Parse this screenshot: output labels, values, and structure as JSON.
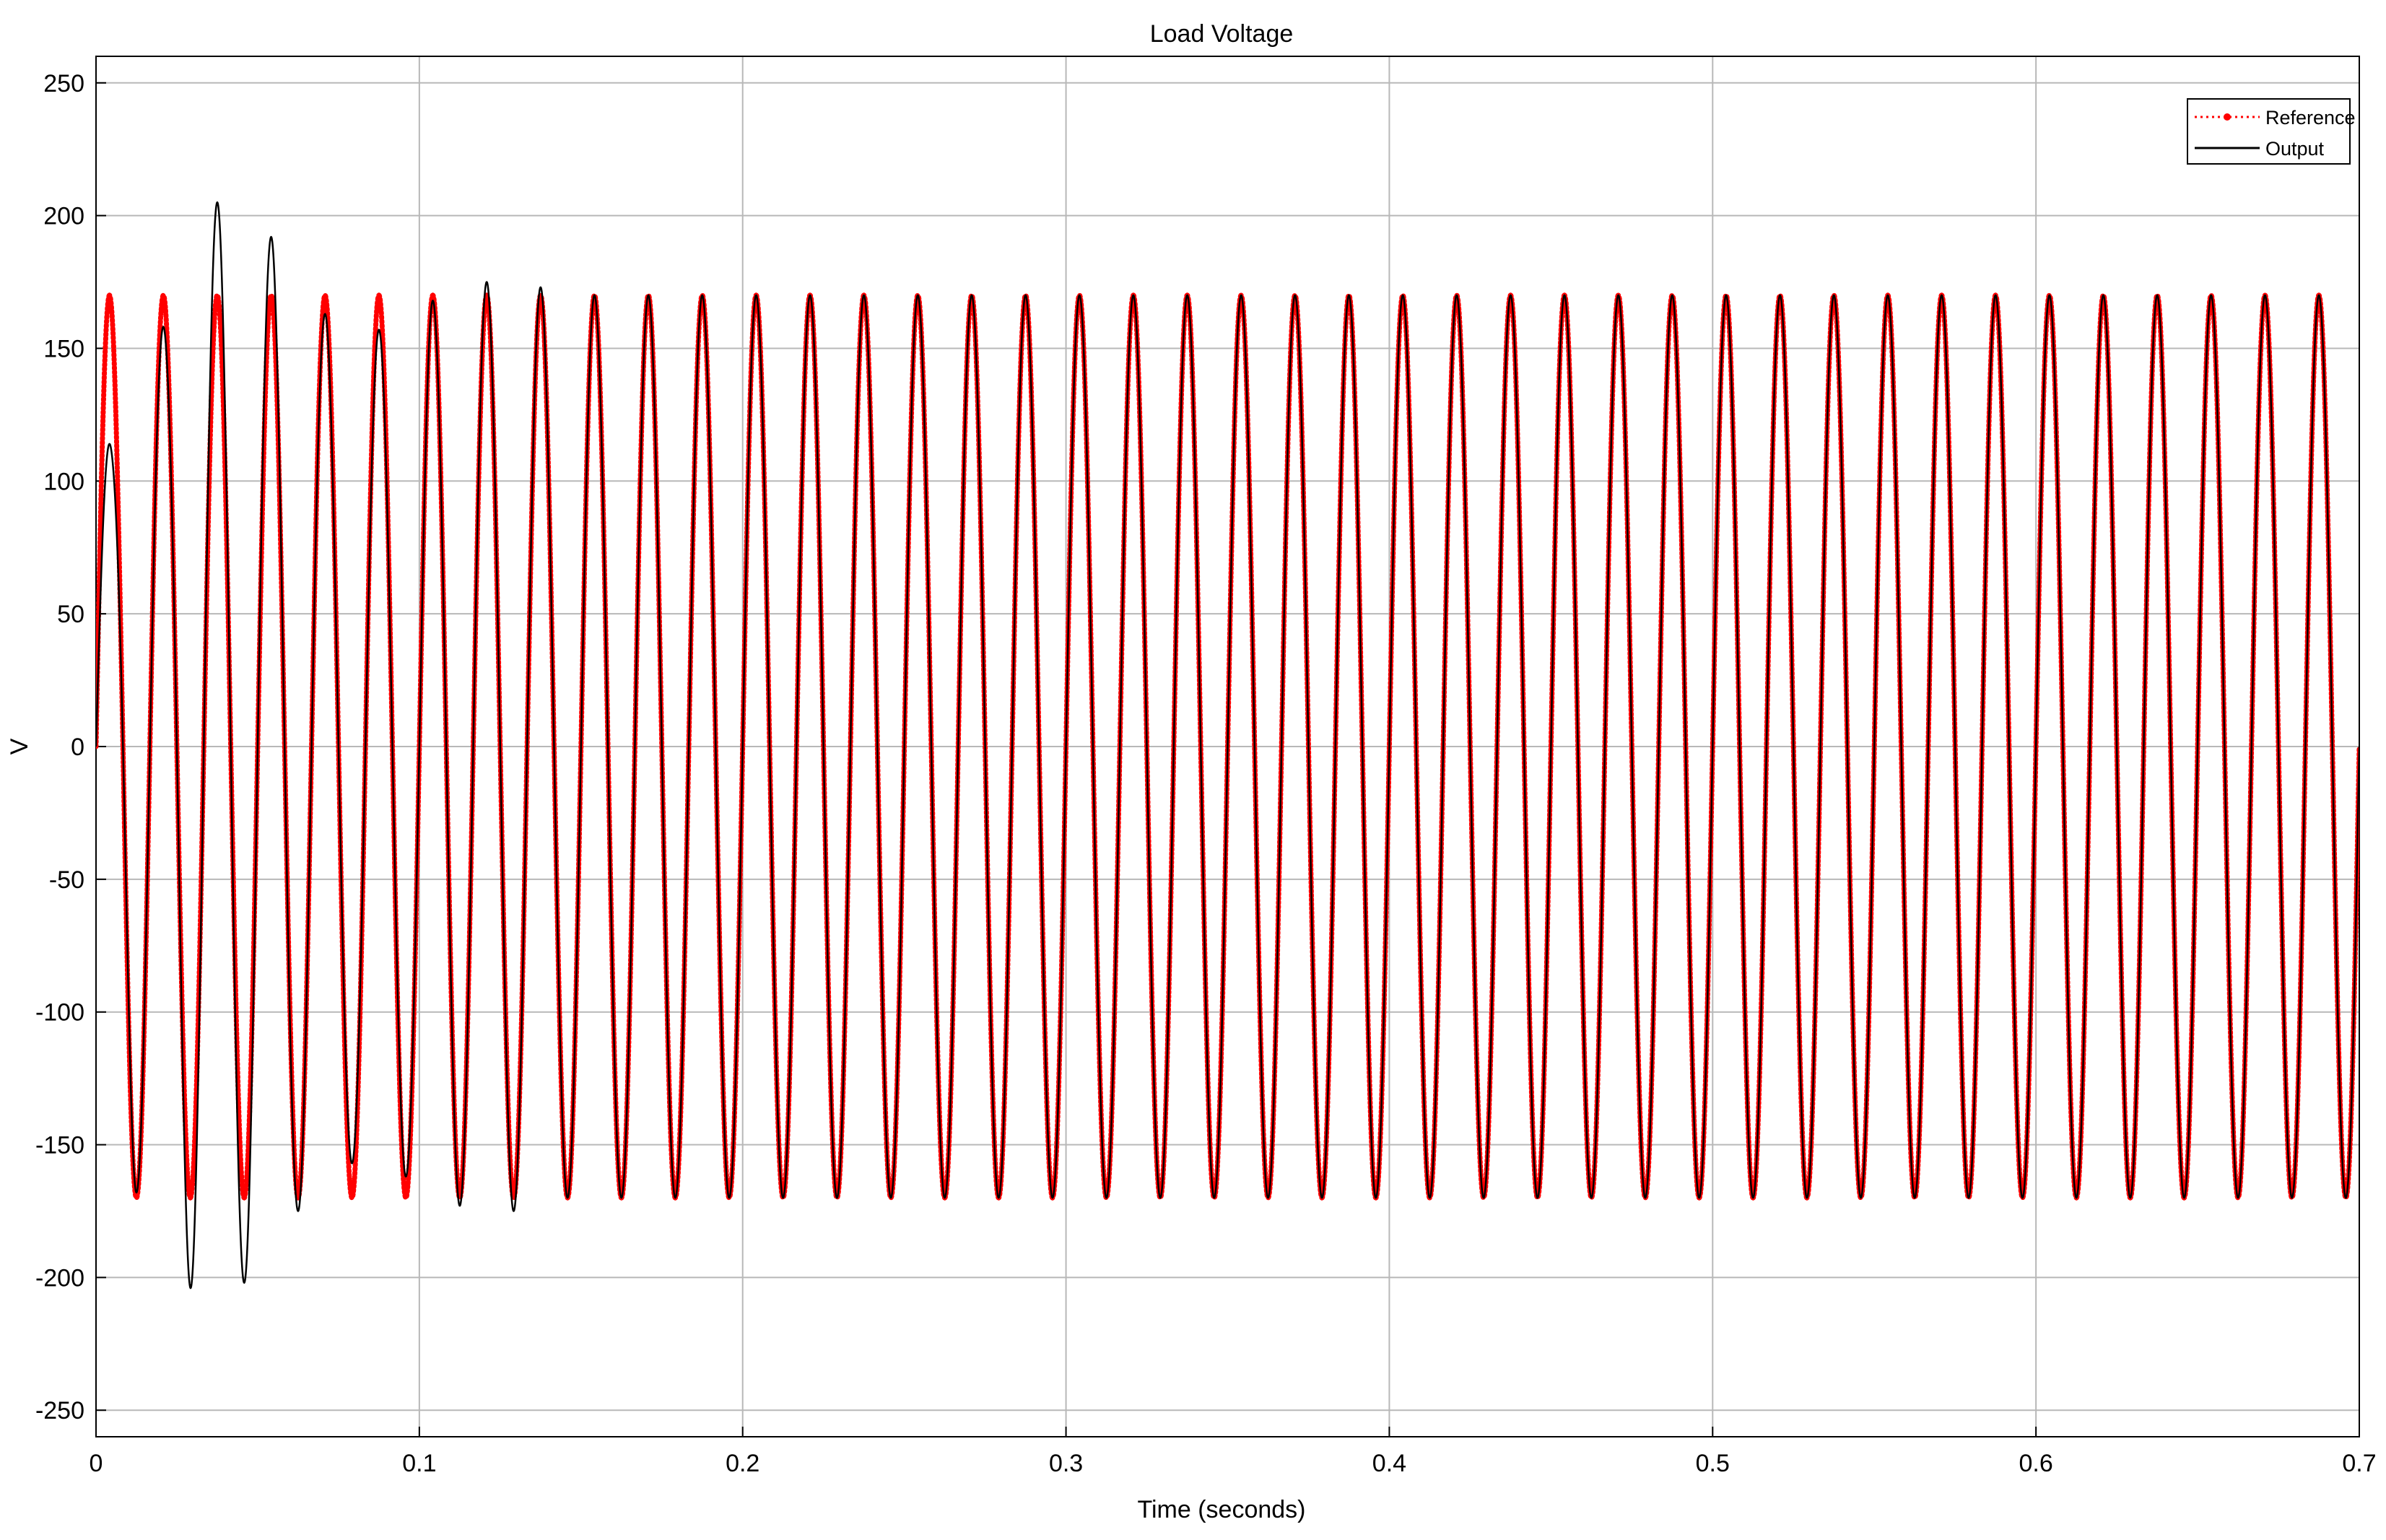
{
  "chart_data": {
    "type": "line",
    "title": "Load Voltage",
    "xlabel": "Time (seconds)",
    "ylabel": "V",
    "xlim": [
      0,
      0.7
    ],
    "ylim": [
      -260,
      260
    ],
    "x_ticks": [
      0,
      0.1,
      0.2,
      0.3,
      0.4,
      0.5,
      0.6,
      0.7
    ],
    "x_tick_labels": [
      "0",
      "0.1",
      "0.2",
      "0.3",
      "0.4",
      "0.5",
      "0.6",
      "0.7"
    ],
    "y_ticks": [
      250,
      200,
      150,
      100,
      50,
      0,
      -50,
      -100,
      -150,
      -200,
      -250
    ],
    "y_tick_labels": [
      "250",
      "200",
      "150",
      "100",
      "50",
      "0",
      "-50",
      "-100",
      "-150",
      "-200",
      "-250"
    ],
    "grid": true,
    "legend_position": "top-right",
    "series": [
      {
        "name": "Reference",
        "style": "dotted",
        "marker": "dot",
        "color": "#ff0000",
        "function": "sine",
        "amplitude": 170,
        "frequency_hz": 60,
        "phase_rad": 0
      },
      {
        "name": "Output",
        "style": "solid",
        "color": "#000000",
        "function": "sine_with_startup_transient",
        "amplitude": 170,
        "frequency_hz": 60,
        "phase_rad": 0,
        "transient_peaks": [
          {
            "x": 0.0045,
            "y": 114
          },
          {
            "x": 0.0125,
            "y": -168
          },
          {
            "x": 0.0215,
            "y": 158
          },
          {
            "x": 0.03,
            "y": -205
          },
          {
            "x": 0.038,
            "y": 205
          },
          {
            "x": 0.046,
            "y": -202
          },
          {
            "x": 0.054,
            "y": 192
          },
          {
            "x": 0.0625,
            "y": -175
          },
          {
            "x": 0.0705,
            "y": 163
          },
          {
            "x": 0.079,
            "y": -157
          },
          {
            "x": 0.0875,
            "y": 157
          },
          {
            "x": 0.096,
            "y": -162
          },
          {
            "x": 0.1045,
            "y": 168
          },
          {
            "x": 0.1125,
            "y": -173
          },
          {
            "x": 0.121,
            "y": 175
          },
          {
            "x": 0.129,
            "y": -175
          },
          {
            "x": 0.1375,
            "y": 173
          }
        ]
      }
    ]
  }
}
